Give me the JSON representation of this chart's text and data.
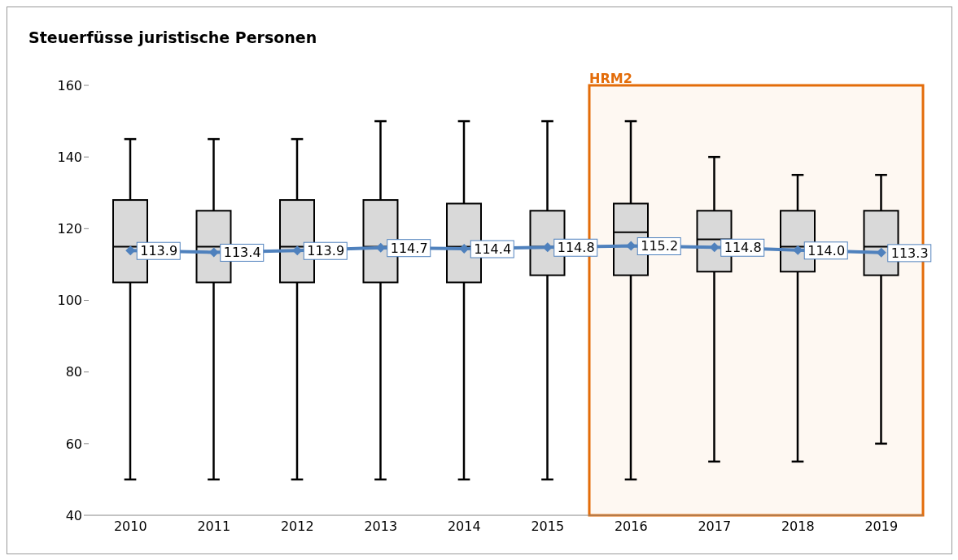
{
  "chart_data": {
    "type": "box",
    "title": "Steuerfüsse juristische Personen",
    "categories": [
      "2010",
      "2011",
      "2012",
      "2013",
      "2014",
      "2015",
      "2016",
      "2017",
      "2018",
      "2019"
    ],
    "ylim": [
      40,
      160
    ],
    "yticks": [
      40,
      60,
      80,
      100,
      120,
      140,
      160
    ],
    "series": [
      {
        "type": "box",
        "color": "#d9d9d9",
        "boxes": [
          {
            "low": 50,
            "q1": 105,
            "median": 115,
            "q3": 128,
            "high": 145
          },
          {
            "low": 50,
            "q1": 105,
            "median": 115,
            "q3": 125,
            "high": 145
          },
          {
            "low": 50,
            "q1": 105,
            "median": 115,
            "q3": 128,
            "high": 145
          },
          {
            "low": 50,
            "q1": 105,
            "median": 115,
            "q3": 128,
            "high": 150
          },
          {
            "low": 50,
            "q1": 105,
            "median": 115,
            "q3": 127,
            "high": 150
          },
          {
            "low": 50,
            "q1": 107,
            "median": 115,
            "q3": 125,
            "high": 150
          },
          {
            "low": 50,
            "q1": 107,
            "median": 119,
            "q3": 127,
            "high": 150
          },
          {
            "low": 55,
            "q1": 108,
            "median": 117,
            "q3": 125,
            "high": 140
          },
          {
            "low": 55,
            "q1": 108,
            "median": 115,
            "q3": 125,
            "high": 135
          },
          {
            "low": 60,
            "q1": 107,
            "median": 115,
            "q3": 125,
            "high": 135
          }
        ]
      },
      {
        "type": "line",
        "color": "#4f81bd",
        "marker": "diamond",
        "values": [
          113.9,
          113.4,
          113.9,
          114.7,
          114.4,
          114.8,
          115.2,
          114.8,
          114.0,
          113.3
        ],
        "value_labels": [
          "113.9",
          "113.4",
          "113.9",
          "114.7",
          "114.4",
          "114.8",
          "115.2",
          "114.8",
          "114.0",
          "113.3"
        ]
      }
    ],
    "bands": [
      {
        "axis": "x",
        "from": "2016",
        "to": "2019",
        "label": "HRM2",
        "color": "#e36c09"
      }
    ]
  }
}
